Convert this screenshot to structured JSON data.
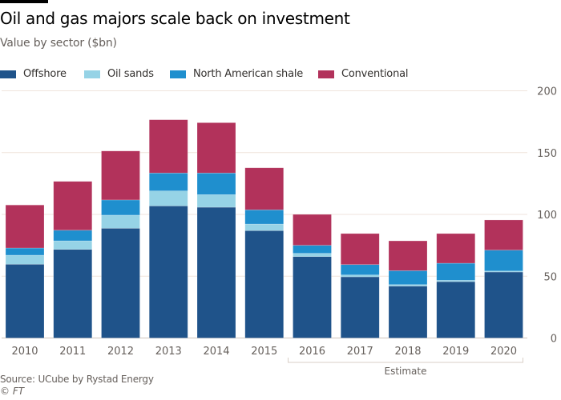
{
  "header": {
    "title": "Oil and gas majors scale back on investment",
    "subtitle": "Value by sector ($bn)"
  },
  "footer": {
    "source": "Source: UCube by Rystad Energy",
    "copyright": "© FT"
  },
  "chart_data": {
    "type": "bar",
    "stacked": true,
    "title": "Oil and gas majors scale back on investment",
    "subtitle": "Value by sector ($bn)",
    "xlabel": "",
    "ylabel": "",
    "ylim": [
      0,
      200
    ],
    "yticks": [
      0,
      50,
      100,
      150,
      200
    ],
    "y_axis_side": "right",
    "grid": true,
    "legend_position": "top-left",
    "categories": [
      "2010",
      "2011",
      "2012",
      "2013",
      "2014",
      "2015",
      "2016",
      "2017",
      "2018",
      "2019",
      "2020"
    ],
    "series": [
      {
        "name": "Offshore",
        "color": "#1f538a",
        "values": [
          59.7,
          71.7,
          88.8,
          106.9,
          105.8,
          86.9,
          65.9,
          49.5,
          42.0,
          45.6,
          53.4
        ]
      },
      {
        "name": "Oil sands",
        "color": "#96d3e6",
        "values": [
          7.3,
          6.9,
          10.6,
          12.1,
          10.2,
          5.3,
          2.6,
          1.5,
          1.2,
          1.1,
          0.8
        ]
      },
      {
        "name": "North American shale",
        "color": "#1f8fce",
        "values": [
          5.8,
          8.6,
          12.3,
          14.5,
          17.5,
          11.5,
          6.5,
          8.4,
          11.3,
          13.8,
          16.9
        ]
      },
      {
        "name": "Conventional",
        "color": "#b2325b",
        "values": [
          34.8,
          39.5,
          39.6,
          43.1,
          40.7,
          34.0,
          25.0,
          25.1,
          24.1,
          24.0,
          24.4
        ]
      }
    ],
    "annotations": [
      {
        "text": "Estimate",
        "from": "2016",
        "to": "2020"
      }
    ],
    "gridline_color": "#efe3dc"
  }
}
